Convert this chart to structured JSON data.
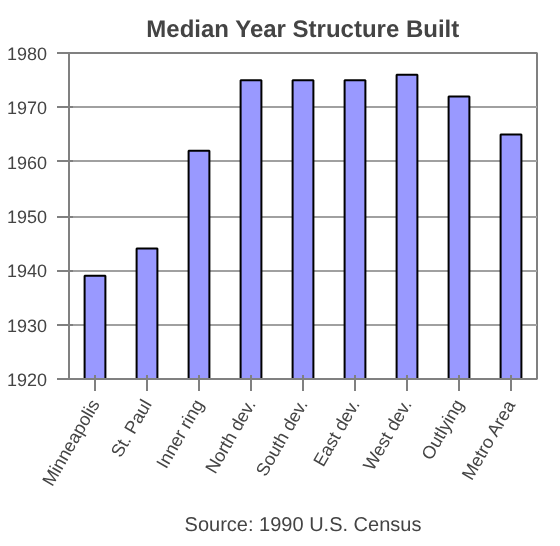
{
  "chart_data": {
    "type": "bar",
    "title": "Median Year Structure Built",
    "categories": [
      "Minneapolis",
      "St. Paul",
      "Inner ring",
      "North dev.",
      "South dev.",
      "East dev.",
      "West dev.",
      "Outlying",
      "Metro Area"
    ],
    "values": [
      1939,
      1944,
      1962,
      1975,
      1975,
      1975,
      1976,
      1972,
      1965
    ],
    "color": "#9999ff",
    "ylim": [
      1920,
      1980
    ],
    "yticks": [
      1920,
      1930,
      1940,
      1950,
      1960,
      1970,
      1980
    ],
    "grid": "y",
    "annotations": [
      "Source: 1990 U.S. Census"
    ]
  }
}
